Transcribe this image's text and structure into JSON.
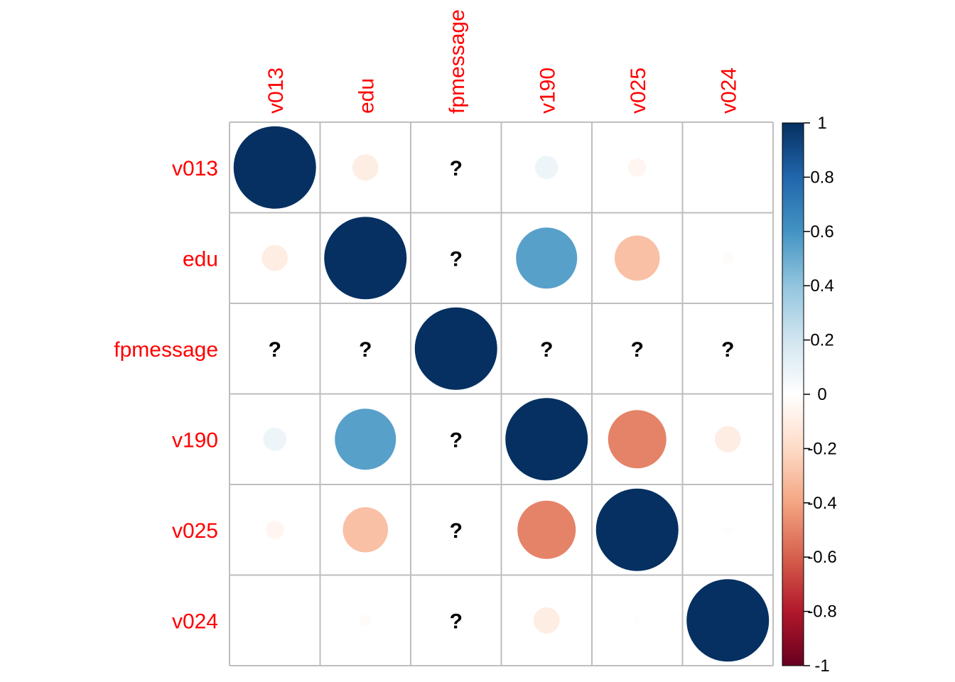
{
  "chart_data": {
    "type": "heatmap",
    "style": "correlation-circles",
    "variables": [
      "v013",
      "edu",
      "fpmessage",
      "v190",
      "v025",
      "v024"
    ],
    "matrix": [
      [
        1.0,
        -0.1,
        null,
        0.08,
        -0.05,
        0.0
      ],
      [
        -0.1,
        1.0,
        null,
        0.55,
        -0.3,
        -0.02
      ],
      [
        null,
        null,
        1.0,
        null,
        null,
        null
      ],
      [
        0.08,
        0.55,
        null,
        1.0,
        -0.5,
        -0.1
      ],
      [
        -0.05,
        -0.3,
        null,
        -0.5,
        1.0,
        -0.01
      ],
      [
        0.0,
        -0.02,
        null,
        -0.1,
        -0.01,
        1.0
      ]
    ],
    "na_label": "?",
    "colorbar": {
      "range": [
        -1,
        1
      ],
      "ticks": [
        "1",
        "0.8",
        "0.6",
        "0.4",
        "0.2",
        "0",
        "-0.2",
        "-0.4",
        "-0.6",
        "-0.8",
        "-1"
      ],
      "tick_values": [
        1,
        0.8,
        0.6,
        0.4,
        0.2,
        0,
        -0.2,
        -0.4,
        -0.6,
        -0.8,
        -1
      ],
      "colors": [
        "#67001F",
        "#B2182B",
        "#D6604D",
        "#F4A582",
        "#FDDBC7",
        "#FFFFFF",
        "#D1E5F0",
        "#92C5DE",
        "#4393C3",
        "#2166AC",
        "#053061"
      ]
    },
    "label_color": "#FF0000",
    "grid_color": "#BEBEBE"
  }
}
